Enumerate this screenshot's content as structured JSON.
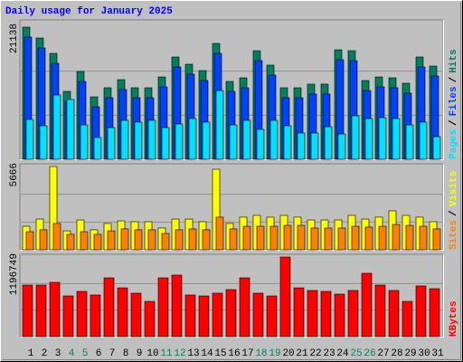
{
  "chart_data": [
    {
      "type": "bar",
      "title": "Daily usage for January 2025",
      "legend_separator": "/",
      "series": [
        {
          "name": "Hits",
          "color": "#00805c",
          "values": [
            21138,
            19400,
            16940,
            10860,
            14040,
            9990,
            11440,
            12740,
            11440,
            11440,
            13170,
            16360,
            15200,
            14190,
            18530,
            12450,
            13030,
            17370,
            15060,
            11440,
            11440,
            12020,
            12020,
            17520,
            17370,
            12600,
            13170,
            13030,
            12160,
            16360,
            14910
          ]
        },
        {
          "name": "Files",
          "color": "#0040ff",
          "values": [
            19550,
            17810,
            15350,
            9270,
            12450,
            8400,
            9850,
            11150,
            9850,
            9850,
            11580,
            14770,
            13610,
            12600,
            16940,
            10860,
            11440,
            15780,
            13470,
            9850,
            9850,
            10430,
            10430,
            15930,
            15780,
            11000,
            11580,
            11440,
            10570,
            14770,
            13320
          ]
        },
        {
          "name": "Pages",
          "color": "#00e0ff",
          "values": [
            6370,
            5360,
            10280,
            9560,
            5500,
            3480,
            5070,
            6230,
            5940,
            6230,
            5070,
            5650,
            6520,
            5940,
            11000,
            5500,
            6230,
            4780,
            6230,
            5360,
            4200,
            4200,
            5210,
            4050,
            6950,
            6520,
            6660,
            6520,
            5500,
            5940,
            3620
          ]
        }
      ],
      "ylim": [
        0,
        21138
      ],
      "yticks": [
        21138
      ]
    },
    {
      "type": "bar",
      "legend_separator": "/",
      "series": [
        {
          "name": "Visits",
          "color": "#ffff00",
          "values": [
            1600,
            2090,
            5666,
            1290,
            2030,
            1360,
            1790,
            1970,
            1910,
            1910,
            1480,
            2090,
            2090,
            1910,
            5480,
            1790,
            2220,
            2340,
            2220,
            2340,
            2220,
            2030,
            2030,
            2030,
            2340,
            2090,
            2220,
            2650,
            2340,
            2220,
            1910
          ]
        },
        {
          "name": "Sites",
          "color": "#ff8000",
          "values": [
            1230,
            1360,
            1790,
            1050,
            1230,
            1050,
            1290,
            1420,
            1360,
            1360,
            1110,
            1360,
            1420,
            1360,
            2220,
            1420,
            1600,
            1600,
            1600,
            1660,
            1660,
            1480,
            1480,
            1480,
            1600,
            1540,
            1600,
            1720,
            1660,
            1600,
            1420
          ]
        }
      ],
      "ylim": [
        0,
        5666
      ],
      "yticks": [
        5666
      ]
    },
    {
      "type": "bar",
      "categories": [
        "1",
        "2",
        "3",
        "4",
        "5",
        "6",
        "7",
        "8",
        "9",
        "10",
        "11",
        "12",
        "13",
        "14",
        "15",
        "16",
        "17",
        "18",
        "19",
        "20",
        "21",
        "22",
        "23",
        "24",
        "25",
        "26",
        "27",
        "28",
        "29",
        "30",
        "31"
      ],
      "category_colors": [
        "#000000",
        "#000000",
        "#000000",
        "#00805c",
        "#00805c",
        "#000000",
        "#000000",
        "#000000",
        "#000000",
        "#000000",
        "#00805c",
        "#00805c",
        "#000000",
        "#000000",
        "#000000",
        "#000000",
        "#000000",
        "#00805c",
        "#00805c",
        "#000000",
        "#000000",
        "#000000",
        "#000000",
        "#000000",
        "#00805c",
        "#00805c",
        "#000000",
        "#000000",
        "#000000",
        "#000000",
        "#000000"
      ],
      "series": [
        {
          "name": "KBytes",
          "color": "#ff0000",
          "values": [
            775000,
            775000,
            816000,
            612000,
            680000,
            626000,
            884000,
            734000,
            653000,
            530000,
            884000,
            925000,
            626000,
            612000,
            653000,
            707000,
            884000,
            653000,
            612000,
            1196749,
            734000,
            694000,
            680000,
            639000,
            694000,
            952000,
            775000,
            694000,
            530000,
            762000,
            721000
          ]
        }
      ],
      "ylim": [
        0,
        1196749
      ],
      "yticks": [
        1196749
      ]
    }
  ]
}
